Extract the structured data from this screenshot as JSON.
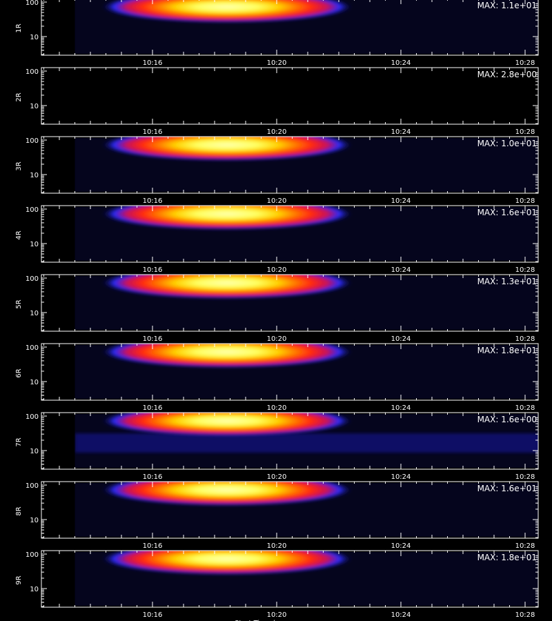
{
  "figure": {
    "xlabel_partial": "Start Time ("
  },
  "chart_data": {
    "type": "heatmap",
    "x_ticks": [
      "10:16",
      "10:20",
      "10:24",
      "10:28"
    ],
    "x_range": [
      "10:12",
      "10:29"
    ],
    "y_scale": "log",
    "y_ticks": [
      "10",
      "100"
    ],
    "colormap": [
      "#000000",
      "#10106e",
      "#2a2af5",
      "#d01060",
      "#ff2a10",
      "#ff9a00",
      "#ffd000",
      "#ffff99"
    ],
    "panels": [
      {
        "label": "1R",
        "max_label": "MAX: 1.1e+01",
        "max": 11,
        "signal": 1.0
      },
      {
        "label": "2R",
        "max_label": "MAX: 2.8e+00",
        "max": 2.8,
        "signal": 0.0
      },
      {
        "label": "3R",
        "max_label": "MAX: 1.0e+01",
        "max": 10,
        "signal": 1.0
      },
      {
        "label": "4R",
        "max_label": "MAX: 1.6e+01",
        "max": 16,
        "signal": 1.0
      },
      {
        "label": "5R",
        "max_label": "MAX: 1.3e+01",
        "max": 13,
        "signal": 1.0
      },
      {
        "label": "6R",
        "max_label": "MAX: 1.8e+01",
        "max": 18,
        "signal": 1.0
      },
      {
        "label": "7R",
        "max_label": "MAX: 1.6e+00",
        "max": 1.6,
        "signal": 1.0,
        "noisy": true
      },
      {
        "label": "8R",
        "max_label": "MAX: 1.6e+01",
        "max": 16,
        "signal": 1.0
      },
      {
        "label": "9R",
        "max_label": "MAX: 1.8e+01",
        "max": 18,
        "signal": 1.0
      }
    ]
  }
}
